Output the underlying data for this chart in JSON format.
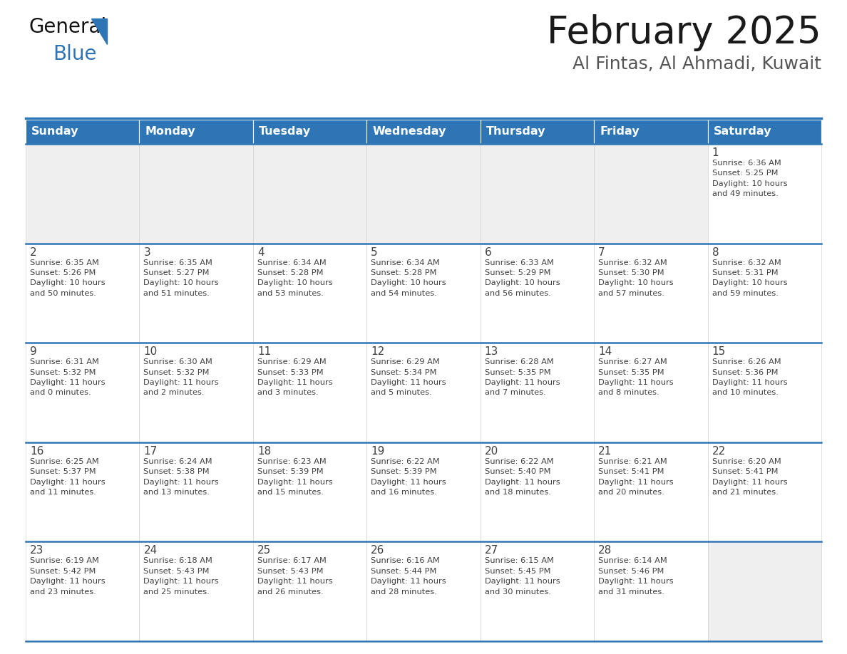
{
  "title": "February 2025",
  "subtitle": "Al Fintas, Al Ahmadi, Kuwait",
  "header_color": "#2E75B6",
  "header_text_color": "#FFFFFF",
  "cell_bg_empty": "#EFEFEF",
  "cell_bg_filled": "#FFFFFF",
  "border_color": "#2E75B6",
  "text_color": "#404040",
  "days_of_week": [
    "Sunday",
    "Monday",
    "Tuesday",
    "Wednesday",
    "Thursday",
    "Friday",
    "Saturday"
  ],
  "weeks": [
    [
      {
        "day": null,
        "info": null
      },
      {
        "day": null,
        "info": null
      },
      {
        "day": null,
        "info": null
      },
      {
        "day": null,
        "info": null
      },
      {
        "day": null,
        "info": null
      },
      {
        "day": null,
        "info": null
      },
      {
        "day": 1,
        "info": "Sunrise: 6:36 AM\nSunset: 5:25 PM\nDaylight: 10 hours\nand 49 minutes."
      }
    ],
    [
      {
        "day": 2,
        "info": "Sunrise: 6:35 AM\nSunset: 5:26 PM\nDaylight: 10 hours\nand 50 minutes."
      },
      {
        "day": 3,
        "info": "Sunrise: 6:35 AM\nSunset: 5:27 PM\nDaylight: 10 hours\nand 51 minutes."
      },
      {
        "day": 4,
        "info": "Sunrise: 6:34 AM\nSunset: 5:28 PM\nDaylight: 10 hours\nand 53 minutes."
      },
      {
        "day": 5,
        "info": "Sunrise: 6:34 AM\nSunset: 5:28 PM\nDaylight: 10 hours\nand 54 minutes."
      },
      {
        "day": 6,
        "info": "Sunrise: 6:33 AM\nSunset: 5:29 PM\nDaylight: 10 hours\nand 56 minutes."
      },
      {
        "day": 7,
        "info": "Sunrise: 6:32 AM\nSunset: 5:30 PM\nDaylight: 10 hours\nand 57 minutes."
      },
      {
        "day": 8,
        "info": "Sunrise: 6:32 AM\nSunset: 5:31 PM\nDaylight: 10 hours\nand 59 minutes."
      }
    ],
    [
      {
        "day": 9,
        "info": "Sunrise: 6:31 AM\nSunset: 5:32 PM\nDaylight: 11 hours\nand 0 minutes."
      },
      {
        "day": 10,
        "info": "Sunrise: 6:30 AM\nSunset: 5:32 PM\nDaylight: 11 hours\nand 2 minutes."
      },
      {
        "day": 11,
        "info": "Sunrise: 6:29 AM\nSunset: 5:33 PM\nDaylight: 11 hours\nand 3 minutes."
      },
      {
        "day": 12,
        "info": "Sunrise: 6:29 AM\nSunset: 5:34 PM\nDaylight: 11 hours\nand 5 minutes."
      },
      {
        "day": 13,
        "info": "Sunrise: 6:28 AM\nSunset: 5:35 PM\nDaylight: 11 hours\nand 7 minutes."
      },
      {
        "day": 14,
        "info": "Sunrise: 6:27 AM\nSunset: 5:35 PM\nDaylight: 11 hours\nand 8 minutes."
      },
      {
        "day": 15,
        "info": "Sunrise: 6:26 AM\nSunset: 5:36 PM\nDaylight: 11 hours\nand 10 minutes."
      }
    ],
    [
      {
        "day": 16,
        "info": "Sunrise: 6:25 AM\nSunset: 5:37 PM\nDaylight: 11 hours\nand 11 minutes."
      },
      {
        "day": 17,
        "info": "Sunrise: 6:24 AM\nSunset: 5:38 PM\nDaylight: 11 hours\nand 13 minutes."
      },
      {
        "day": 18,
        "info": "Sunrise: 6:23 AM\nSunset: 5:39 PM\nDaylight: 11 hours\nand 15 minutes."
      },
      {
        "day": 19,
        "info": "Sunrise: 6:22 AM\nSunset: 5:39 PM\nDaylight: 11 hours\nand 16 minutes."
      },
      {
        "day": 20,
        "info": "Sunrise: 6:22 AM\nSunset: 5:40 PM\nDaylight: 11 hours\nand 18 minutes."
      },
      {
        "day": 21,
        "info": "Sunrise: 6:21 AM\nSunset: 5:41 PM\nDaylight: 11 hours\nand 20 minutes."
      },
      {
        "day": 22,
        "info": "Sunrise: 6:20 AM\nSunset: 5:41 PM\nDaylight: 11 hours\nand 21 minutes."
      }
    ],
    [
      {
        "day": 23,
        "info": "Sunrise: 6:19 AM\nSunset: 5:42 PM\nDaylight: 11 hours\nand 23 minutes."
      },
      {
        "day": 24,
        "info": "Sunrise: 6:18 AM\nSunset: 5:43 PM\nDaylight: 11 hours\nand 25 minutes."
      },
      {
        "day": 25,
        "info": "Sunrise: 6:17 AM\nSunset: 5:43 PM\nDaylight: 11 hours\nand 26 minutes."
      },
      {
        "day": 26,
        "info": "Sunrise: 6:16 AM\nSunset: 5:44 PM\nDaylight: 11 hours\nand 28 minutes."
      },
      {
        "day": 27,
        "info": "Sunrise: 6:15 AM\nSunset: 5:45 PM\nDaylight: 11 hours\nand 30 minutes."
      },
      {
        "day": 28,
        "info": "Sunrise: 6:14 AM\nSunset: 5:46 PM\nDaylight: 11 hours\nand 31 minutes."
      },
      {
        "day": null,
        "info": null
      }
    ]
  ],
  "fig_width": 11.88,
  "fig_height": 9.18,
  "dpi": 100
}
